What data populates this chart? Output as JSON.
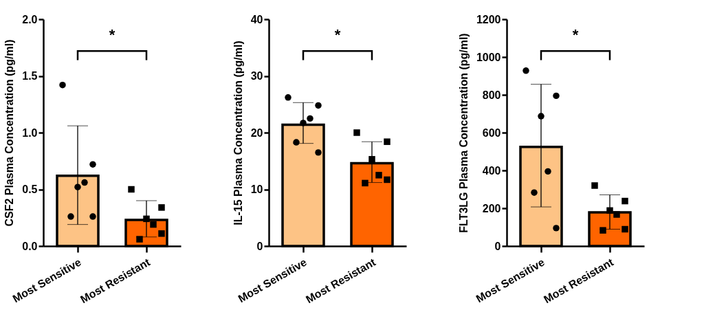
{
  "chart_data": [
    {
      "type": "bar",
      "ylabel": "CSF2 Plasma Concentration (pg/ml)",
      "categories": [
        "Most Sensitive",
        "Most Resistant"
      ],
      "ylim": [
        0,
        2
      ],
      "yticks": [
        {
          "value": 0,
          "label": "0.0"
        },
        0.5,
        {
          "value": 1,
          "label": "1.0"
        },
        1.5,
        {
          "value": 2,
          "label": "2.0"
        }
      ],
      "annotations": [
        "*"
      ],
      "series": [
        {
          "type": "bar",
          "colors": [
            "#fdc385",
            "#ff6400"
          ],
          "values": [
            0.62,
            0.23
          ],
          "errors": [
            [
              0.19,
              1.06
            ],
            [
              0.08,
              0.4
            ]
          ]
        },
        {
          "type": "scatter",
          "marker": "circle",
          "color": "#000000",
          "x": [
            "Most Sensitive",
            "Most Sensitive",
            "Most Sensitive",
            "Most Sensitive",
            "Most Sensitive",
            "Most Sensitive"
          ],
          "values": [
            1.42,
            0.72,
            0.52,
            0.56,
            0.26,
            0.26
          ]
        },
        {
          "type": "scatter",
          "marker": "square",
          "color": "#000000",
          "x": [
            "Most Resistant",
            "Most Resistant",
            "Most Resistant",
            "Most Resistant",
            "Most Resistant",
            "Most Resistant"
          ],
          "values": [
            0.5,
            0.34,
            0.24,
            0.19,
            0.06,
            0.11
          ]
        }
      ]
    },
    {
      "type": "bar",
      "ylabel": "IL-15 Plasma Concentration (pg/ml)",
      "categories": [
        "Most Sensitive",
        "Most Resistant"
      ],
      "ylim": [
        0,
        40
      ],
      "yticks": [
        0,
        10,
        20,
        30,
        40
      ],
      "annotations": [
        "*"
      ],
      "series": [
        {
          "type": "bar",
          "colors": [
            "#fdc385",
            "#ff6400"
          ],
          "values": [
            21.4,
            14.6
          ],
          "errors": [
            [
              18.1,
              25.3
            ],
            [
              11.2,
              18.4
            ]
          ]
        },
        {
          "type": "scatter",
          "marker": "circle",
          "color": "#000000",
          "x": [
            "Most Sensitive",
            "Most Sensitive",
            "Most Sensitive",
            "Most Sensitive",
            "Most Sensitive",
            "Most Sensitive"
          ],
          "values": [
            26.2,
            24.8,
            21.7,
            22.5,
            18.3,
            16.5
          ]
        },
        {
          "type": "scatter",
          "marker": "square",
          "color": "#000000",
          "x": [
            "Most Resistant",
            "Most Resistant",
            "Most Resistant",
            "Most Resistant",
            "Most Resistant",
            "Most Resistant"
          ],
          "values": [
            20.0,
            18.4,
            15.3,
            12.5,
            11.1,
            11.7
          ]
        }
      ]
    },
    {
      "type": "bar",
      "ylabel": "FLT3LG Plasma Concentration (pg/ml)",
      "categories": [
        "Most Sensitive",
        "Most Resistant"
      ],
      "ylim": [
        0,
        1200
      ],
      "yticks": [
        0,
        200,
        400,
        600,
        800,
        1000,
        1200
      ],
      "annotations": [
        "*"
      ],
      "series": [
        {
          "type": "bar",
          "colors": [
            "#fdc385",
            "#ff6400"
          ],
          "values": [
            525,
            178
          ],
          "errors": [
            [
              207,
              856
            ],
            [
              89,
              271
            ]
          ]
        },
        {
          "type": "scatter",
          "marker": "circle",
          "color": "#000000",
          "x": [
            "Most Sensitive",
            "Most Sensitive",
            "Most Sensitive",
            "Most Sensitive",
            "Most Sensitive",
            "Most Sensitive"
          ],
          "values": [
            928,
            795,
            687,
            395,
            283,
            95
          ]
        },
        {
          "type": "scatter",
          "marker": "square",
          "color": "#000000",
          "x": [
            "Most Resistant",
            "Most Resistant",
            "Most Resistant",
            "Most Resistant",
            "Most Resistant",
            "Most Resistant"
          ],
          "values": [
            320,
            238,
            188,
            167,
            83,
            89
          ]
        }
      ]
    }
  ]
}
